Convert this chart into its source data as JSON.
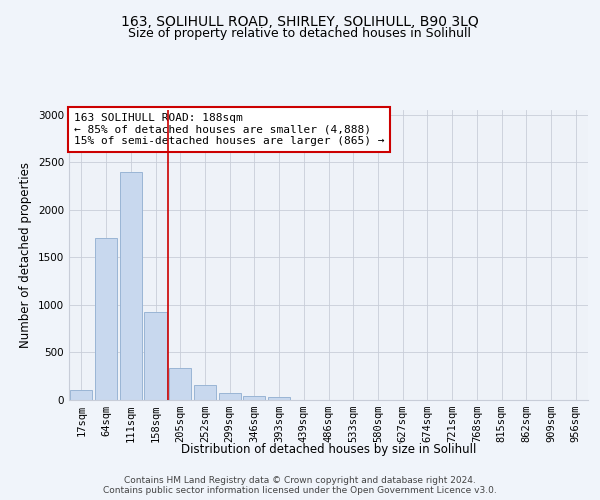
{
  "title": "163, SOLIHULL ROAD, SHIRLEY, SOLIHULL, B90 3LQ",
  "subtitle": "Size of property relative to detached houses in Solihull",
  "xlabel": "Distribution of detached houses by size in Solihull",
  "ylabel": "Number of detached properties",
  "categories": [
    "17sqm",
    "64sqm",
    "111sqm",
    "158sqm",
    "205sqm",
    "252sqm",
    "299sqm",
    "346sqm",
    "393sqm",
    "439sqm",
    "486sqm",
    "533sqm",
    "580sqm",
    "627sqm",
    "674sqm",
    "721sqm",
    "768sqm",
    "815sqm",
    "862sqm",
    "909sqm",
    "956sqm"
  ],
  "values": [
    100,
    1700,
    2400,
    930,
    340,
    160,
    75,
    45,
    30,
    0,
    0,
    0,
    0,
    0,
    0,
    0,
    0,
    0,
    0,
    0,
    0
  ],
  "bar_color": "#c8d8ee",
  "bar_edge_color": "#9ab5d5",
  "vline_x": 3.5,
  "vline_color": "#cc0000",
  "annotation_text": "163 SOLIHULL ROAD: 188sqm\n← 85% of detached houses are smaller (4,888)\n15% of semi-detached houses are larger (865) →",
  "annotation_box_color": "#ffffff",
  "annotation_box_edge_color": "#cc0000",
  "ylim": [
    0,
    3050
  ],
  "yticks": [
    0,
    500,
    1000,
    1500,
    2000,
    2500,
    3000
  ],
  "background_color": "#f0f4fa",
  "plot_bg_color": "#eef2f8",
  "grid_color": "#c8cdd8",
  "footer_text": "Contains HM Land Registry data © Crown copyright and database right 2024.\nContains public sector information licensed under the Open Government Licence v3.0.",
  "title_fontsize": 10,
  "subtitle_fontsize": 9,
  "xlabel_fontsize": 8.5,
  "ylabel_fontsize": 8.5,
  "tick_fontsize": 7.5,
  "annotation_fontsize": 8,
  "footer_fontsize": 6.5
}
